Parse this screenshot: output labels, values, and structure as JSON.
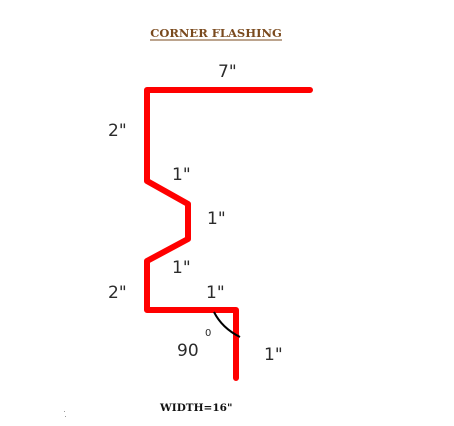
{
  "diagram": {
    "title": "CORNER  FLASHING",
    "width_label": "WIDTH=16\"",
    "angle": {
      "value": "90",
      "degree_symbol": "0"
    },
    "dimensions": {
      "top_leg": "7\"",
      "upper_vertical": "2\"",
      "zig_1": "1\"",
      "zig_2": "1\"",
      "zig_3": "1\"",
      "lower_vertical": "2\"",
      "bottom_leg": "1\"",
      "drop_leg": "1\""
    },
    "colors": {
      "flashing": "#ff0000",
      "title": "#7a4a1e",
      "text": "#2b2b2b"
    }
  }
}
